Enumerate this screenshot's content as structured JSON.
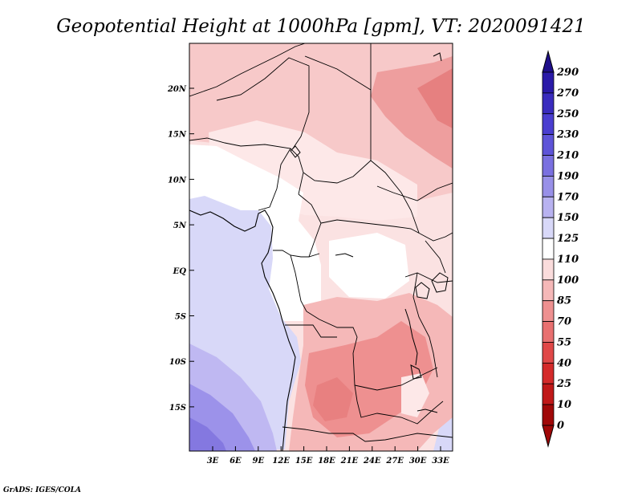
{
  "title": "Geopotential Height at 1000hPa [gpm], VT: 2020091421",
  "credit": "GrADS: IGES/COLA",
  "map": {
    "lat_labels": [
      "20N",
      "15N",
      "10N",
      "5N",
      "EQ",
      "5S",
      "10S",
      "15S"
    ],
    "lon_labels": [
      "3E",
      "6E",
      "9E",
      "12E",
      "15E",
      "18E",
      "21E",
      "24E",
      "27E",
      "30E",
      "33E"
    ]
  },
  "colorbar": {
    "levels": [
      "290",
      "270",
      "250",
      "230",
      "210",
      "190",
      "170",
      "150",
      "125",
      "110",
      "100",
      "85",
      "70",
      "55",
      "40",
      "25",
      "10",
      "0"
    ],
    "colors": [
      "#1f0f8a",
      "#2a1aa8",
      "#3a2cbe",
      "#4a3ed0",
      "#5e54d8",
      "#7a70e0",
      "#9890e8",
      "#b8b2f0",
      "#d8d8f8",
      "#ffffff",
      "#fadcdc",
      "#f5b8b8",
      "#ee9090",
      "#e87070",
      "#e04848",
      "#d42a2a",
      "#c01818",
      "#a00808"
    ]
  }
}
